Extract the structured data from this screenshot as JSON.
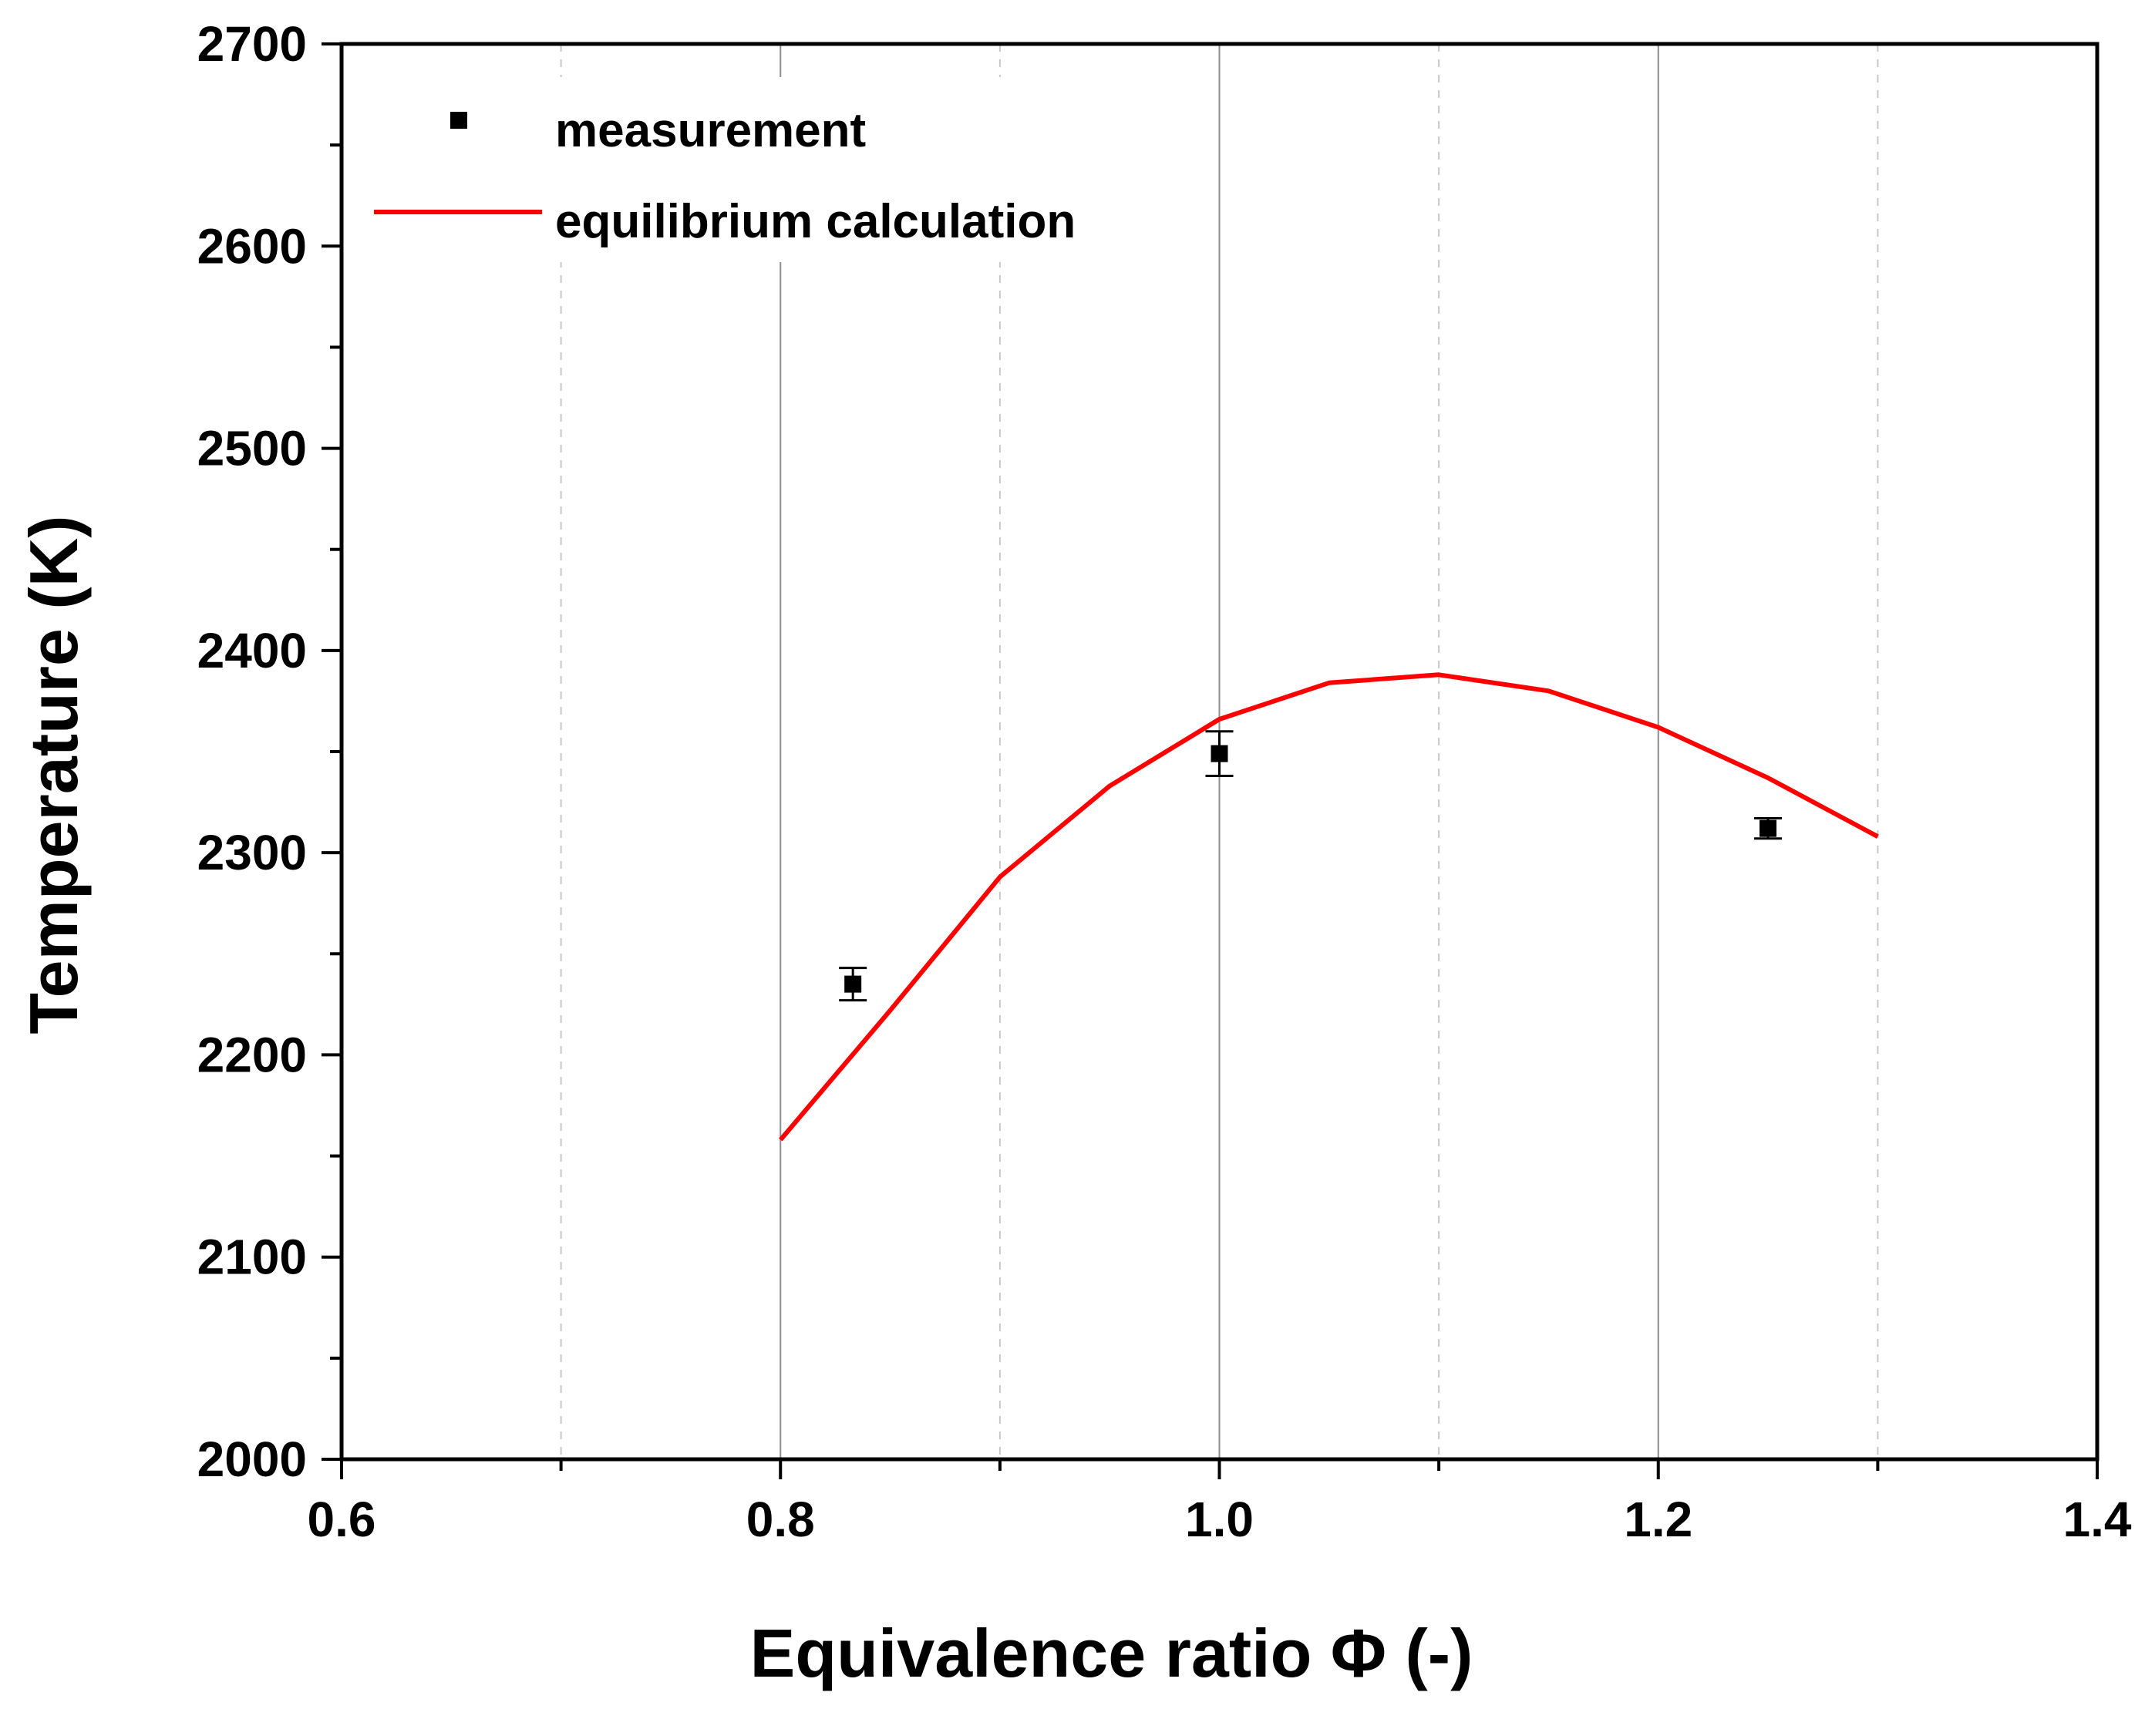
{
  "chart_data": {
    "type": "scatter",
    "title": "",
    "xlabel": "Equivalence ratio Φ (-)",
    "ylabel": "Temperature (K)",
    "xlim": [
      0.6,
      1.4
    ],
    "ylim": [
      2000,
      2700
    ],
    "x_major_ticks": [
      0.6,
      0.8,
      1.0,
      1.2,
      1.4
    ],
    "x_tick_labels": [
      "0.6",
      "0.8",
      "1.0",
      "1.2",
      "1.4"
    ],
    "y_major_ticks": [
      2000,
      2100,
      2200,
      2300,
      2400,
      2500,
      2600,
      2700
    ],
    "y_tick_labels": [
      "2000",
      "2100",
      "2200",
      "2300",
      "2400",
      "2500",
      "2600",
      "2700"
    ],
    "grid": "vertical",
    "legend_position": "top-left",
    "series": [
      {
        "name": "measurement",
        "kind": "markers",
        "marker": "square",
        "color": "#000000",
        "x": [
          0.833,
          1.0,
          1.25
        ],
        "y": [
          2235,
          2349,
          2312
        ],
        "y_err": [
          8,
          11,
          5
        ]
      },
      {
        "name": "equilibrium calculation",
        "kind": "line",
        "color": "#ff0000",
        "x": [
          0.8,
          0.85,
          0.9,
          0.95,
          1.0,
          1.05,
          1.1,
          1.15,
          1.2,
          1.25,
          1.3
        ],
        "y": [
          2158,
          2222,
          2288,
          2333,
          2366,
          2384,
          2388,
          2380,
          2362,
          2337,
          2308
        ]
      }
    ]
  }
}
